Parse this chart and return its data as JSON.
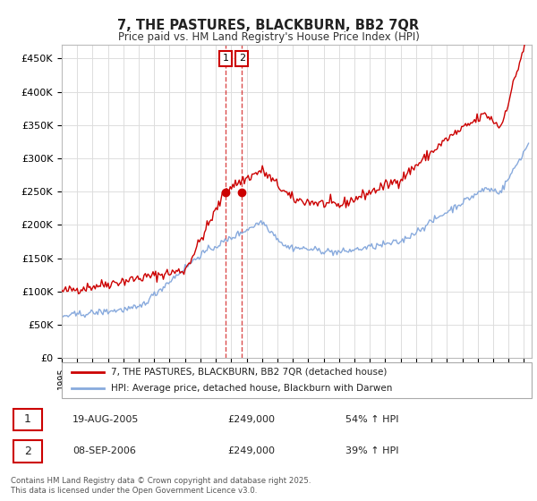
{
  "title": "7, THE PASTURES, BLACKBURN, BB2 7QR",
  "subtitle": "Price paid vs. HM Land Registry's House Price Index (HPI)",
  "ylabel_ticks": [
    "£0",
    "£50K",
    "£100K",
    "£150K",
    "£200K",
    "£250K",
    "£300K",
    "£350K",
    "£400K",
    "£450K"
  ],
  "ytick_values": [
    0,
    50000,
    100000,
    150000,
    200000,
    250000,
    300000,
    350000,
    400000,
    450000
  ],
  "ylim": [
    0,
    470000
  ],
  "xlim_start": 1995.0,
  "xlim_end": 2025.5,
  "line1_color": "#cc0000",
  "line2_color": "#88aadd",
  "vline_color": "#cc0000",
  "legend_line1": "7, THE PASTURES, BLACKBURN, BB2 7QR (detached house)",
  "legend_line2": "HPI: Average price, detached house, Blackburn with Darwen",
  "transaction1_date": "19-AUG-2005",
  "transaction1_price": "£249,000",
  "transaction1_hpi": "54% ↑ HPI",
  "transaction2_date": "08-SEP-2006",
  "transaction2_price": "£249,000",
  "transaction2_hpi": "39% ↑ HPI",
  "transaction1_x": 2005.63,
  "transaction2_x": 2006.69,
  "transaction1_y": 249000,
  "transaction2_y": 249000,
  "footer": "Contains HM Land Registry data © Crown copyright and database right 2025.\nThis data is licensed under the Open Government Licence v3.0.",
  "grid_color": "#dddddd"
}
